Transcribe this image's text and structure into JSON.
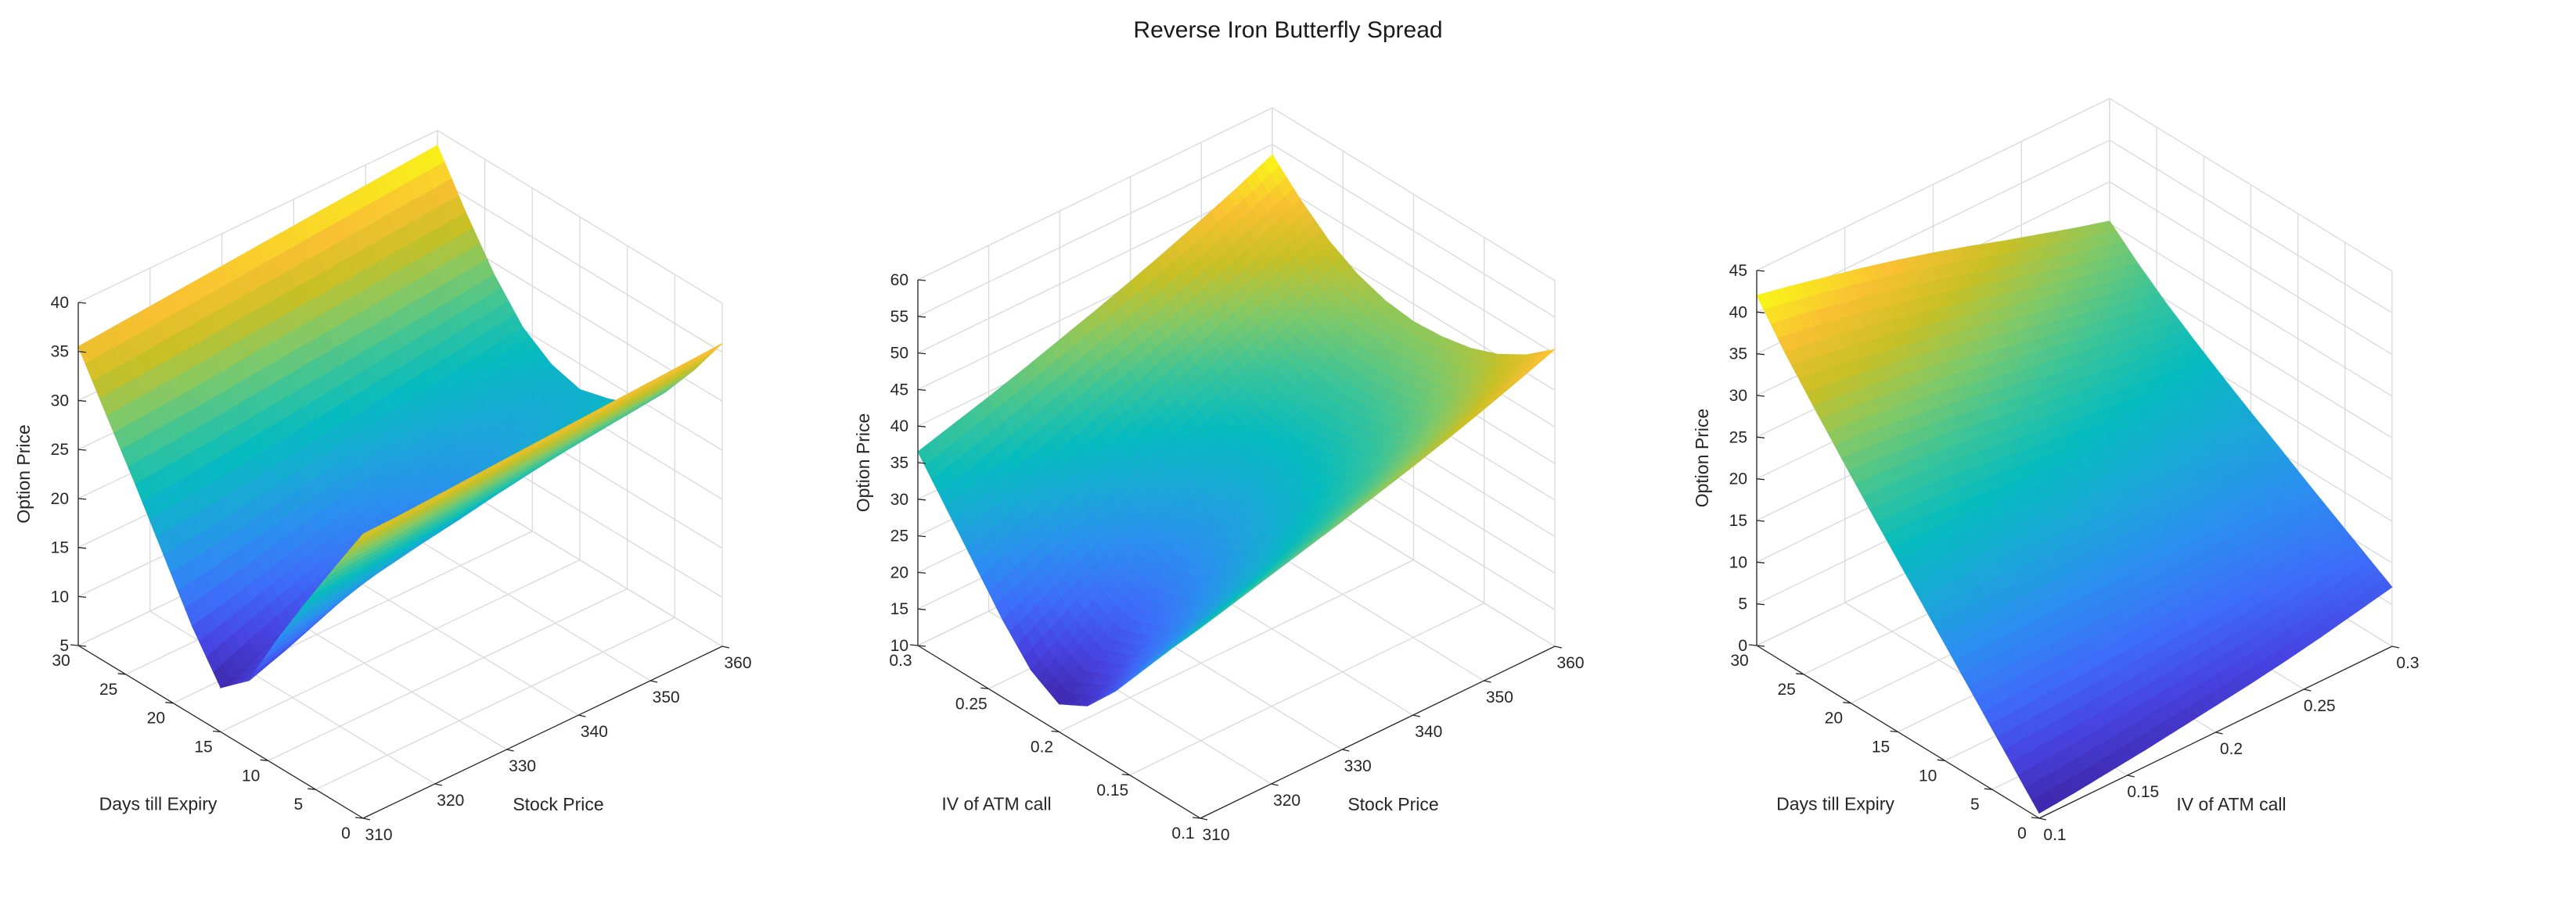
{
  "figure_title": "Reverse Iron Butterfly Spread",
  "colors": {
    "colormap": "parula",
    "low": "#3e26a8",
    "high": "#f9fb15"
  },
  "chart_data": [
    {
      "type": "surface",
      "title": "",
      "xlabel": "Days till Expiry",
      "ylabel": "Stock Price",
      "zlabel": "Option Price",
      "xlim": [
        0,
        30
      ],
      "ylim": [
        310,
        360
      ],
      "zlim": [
        5,
        40
      ],
      "xticks": [
        0,
        5,
        10,
        15,
        20,
        25,
        30
      ],
      "yticks": [
        310,
        320,
        330,
        340,
        350,
        360
      ],
      "zticks": [
        5,
        10,
        15,
        20,
        25,
        30,
        35,
        40
      ],
      "grid": true,
      "x": [
        0,
        3,
        6,
        9,
        12,
        15,
        18,
        21,
        24,
        27,
        30
      ],
      "y": [
        310,
        315,
        320,
        325,
        330,
        335,
        340,
        345,
        350,
        355,
        360
      ],
      "z": [
        [
          34.0,
          28.8,
          23.5,
          18.0,
          12.0,
          9.5,
          14.0,
          19.5,
          25.0,
          30.2,
          35.5
        ],
        [
          34.1,
          29.0,
          23.9,
          18.6,
          13.3,
          11.3,
          14.9,
          19.9,
          25.3,
          30.5,
          35.8
        ],
        [
          34.3,
          29.2,
          24.2,
          19.3,
          14.8,
          12.9,
          15.9,
          20.4,
          25.6,
          30.8,
          36.1
        ],
        [
          34.5,
          29.5,
          24.6,
          20.0,
          16.3,
          14.4,
          16.9,
          21.0,
          26.0,
          31.1,
          36.4
        ],
        [
          34.7,
          29.8,
          25.0,
          20.7,
          17.6,
          15.9,
          17.9,
          21.6,
          26.4,
          31.5,
          36.7
        ],
        [
          34.9,
          30.1,
          25.4,
          21.3,
          18.7,
          17.2,
          18.9,
          22.2,
          26.8,
          31.8,
          37.0
        ],
        [
          35.1,
          30.3,
          25.8,
          22.0,
          19.8,
          18.4,
          19.9,
          22.8,
          27.2,
          32.1,
          37.3
        ],
        [
          35.3,
          30.6,
          26.2,
          22.6,
          20.7,
          19.5,
          20.8,
          23.4,
          27.6,
          32.4,
          37.6
        ],
        [
          35.5,
          30.9,
          26.6,
          23.2,
          21.6,
          20.6,
          21.6,
          24.0,
          28.0,
          32.8,
          37.9
        ],
        [
          35.7,
          31.1,
          27.0,
          23.8,
          22.4,
          21.5,
          22.4,
          24.6,
          28.4,
          33.1,
          38.2
        ],
        [
          35.9,
          31.4,
          27.4,
          24.4,
          23.2,
          22.4,
          23.2,
          25.2,
          28.8,
          33.4,
          38.5
        ]
      ]
    },
    {
      "type": "surface",
      "title": "",
      "xlabel": "IV of ATM call",
      "ylabel": "Stock Price",
      "zlabel": "Option Price",
      "xlim": [
        0.1,
        0.3
      ],
      "ylim": [
        310,
        360
      ],
      "zlim": [
        10,
        60
      ],
      "xticks": [
        0.1,
        0.15,
        0.2,
        0.25,
        0.3
      ],
      "yticks": [
        310,
        320,
        330,
        340,
        350,
        360
      ],
      "zticks": [
        10,
        15,
        20,
        25,
        30,
        35,
        40,
        45,
        50,
        55,
        60
      ],
      "grid": true,
      "x": [
        0.1,
        0.12,
        0.14,
        0.16,
        0.18,
        0.2,
        0.22,
        0.24,
        0.26,
        0.28,
        0.3
      ],
      "y": [
        310,
        315,
        320,
        325,
        330,
        335,
        340,
        345,
        350,
        355,
        360
      ],
      "z": [
        [
          36.0,
          30.9,
          25.6,
          20.3,
          15.9,
          13.8,
          16.1,
          20.6,
          25.9,
          31.2,
          36.5
        ],
        [
          37.3,
          32.4,
          27.5,
          22.8,
          19.1,
          17.4,
          19.2,
          23.0,
          27.8,
          32.8,
          37.9
        ],
        [
          38.6,
          33.9,
          29.3,
          25.2,
          22.1,
          20.7,
          22.2,
          25.5,
          29.8,
          34.5,
          39.3
        ],
        [
          39.9,
          35.4,
          31.1,
          27.6,
          25.0,
          23.8,
          25.1,
          27.9,
          31.8,
          36.2,
          40.8
        ],
        [
          41.2,
          36.9,
          33.0,
          29.9,
          27.8,
          26.7,
          27.8,
          30.3,
          33.8,
          38.0,
          42.4
        ],
        [
          42.6,
          38.5,
          34.8,
          32.1,
          30.4,
          29.5,
          30.5,
          32.6,
          35.8,
          39.8,
          44.0
        ],
        [
          44.0,
          40.1,
          36.7,
          34.3,
          32.9,
          32.2,
          33.0,
          34.9,
          37.9,
          41.6,
          45.7
        ],
        [
          45.5,
          41.8,
          38.7,
          36.5,
          35.3,
          34.8,
          35.5,
          37.2,
          40.0,
          43.5,
          47.5
        ],
        [
          47.1,
          43.6,
          40.7,
          38.8,
          37.8,
          37.4,
          38.0,
          39.5,
          42.1,
          45.5,
          49.4
        ],
        [
          48.8,
          45.5,
          42.9,
          41.2,
          40.3,
          40.0,
          40.5,
          41.9,
          44.3,
          47.6,
          51.4
        ],
        [
          50.6,
          47.5,
          45.2,
          43.7,
          42.9,
          42.6,
          43.1,
          44.4,
          46.6,
          49.8,
          53.6
        ]
      ]
    },
    {
      "type": "surface",
      "title": "",
      "xlabel": "Days till Expiry",
      "ylabel": "IV of ATM call",
      "zlabel": "Option Price",
      "xlim": [
        0,
        30
      ],
      "ylim": [
        0.1,
        0.3
      ],
      "zlim": [
        0,
        45
      ],
      "xticks": [
        0,
        5,
        10,
        15,
        20,
        25,
        30
      ],
      "yticks": [
        0.1,
        0.15,
        0.2,
        0.25,
        0.3
      ],
      "zticks": [
        0,
        5,
        10,
        15,
        20,
        25,
        30,
        35,
        40,
        45
      ],
      "grid": true,
      "x": [
        0,
        3,
        6,
        9,
        12,
        15,
        18,
        21,
        24,
        27,
        30
      ],
      "y": [
        0.1,
        0.12,
        0.14,
        0.16,
        0.18,
        0.2,
        0.22,
        0.24,
        0.26,
        0.28,
        0.3
      ],
      "z": [
        [
          0.6,
          4.6,
          8.6,
          12.6,
          16.6,
          20.6,
          24.6,
          28.7,
          32.9,
          37.2,
          42.0
        ],
        [
          1.0,
          4.9,
          8.8,
          12.7,
          16.6,
          20.5,
          24.4,
          28.3,
          32.4,
          36.6,
          41.1
        ],
        [
          1.5,
          5.2,
          9.0,
          12.7,
          16.5,
          20.2,
          24.0,
          27.8,
          31.7,
          35.8,
          40.1
        ],
        [
          2.0,
          5.6,
          9.1,
          12.7,
          16.3,
          19.9,
          23.5,
          27.2,
          31.0,
          34.9,
          39.1
        ],
        [
          2.6,
          6.0,
          9.3,
          12.7,
          16.1,
          19.5,
          22.9,
          26.4,
          30.1,
          33.9,
          38.0
        ],
        [
          3.2,
          6.4,
          9.6,
          12.7,
          15.9,
          19.1,
          22.3,
          25.6,
          29.1,
          32.8,
          36.8
        ],
        [
          3.8,
          6.8,
          9.8,
          12.8,
          15.7,
          18.7,
          21.7,
          24.8,
          28.1,
          31.6,
          35.5
        ],
        [
          4.5,
          7.3,
          10.1,
          12.9,
          15.6,
          18.4,
          21.2,
          24.1,
          27.2,
          30.5,
          34.1
        ],
        [
          5.3,
          7.9,
          10.4,
          13.0,
          15.6,
          18.1,
          20.7,
          23.4,
          26.3,
          29.4,
          32.8
        ],
        [
          6.2,
          8.5,
          10.8,
          13.2,
          15.5,
          17.9,
          20.3,
          22.8,
          25.4,
          28.3,
          31.5
        ],
        [
          7.1,
          9.2,
          11.3,
          13.4,
          15.6,
          17.7,
          19.9,
          22.2,
          24.6,
          27.3,
          30.3
        ]
      ]
    }
  ]
}
